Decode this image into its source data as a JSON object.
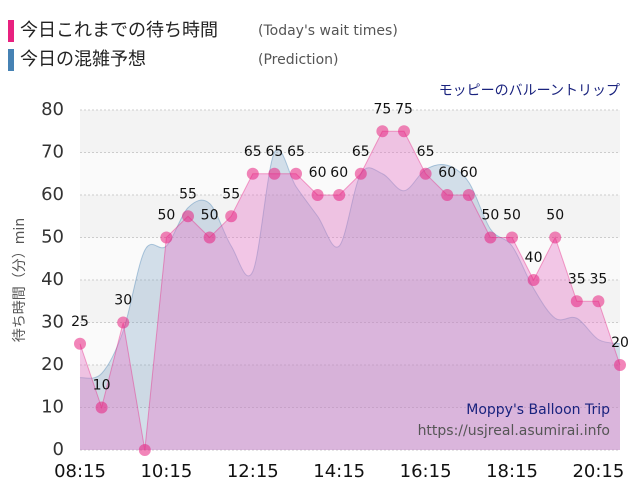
{
  "chart_data": {
    "type": "area",
    "legend": [
      {
        "name": "今日これまでの待ち時間",
        "note": "(Today's wait times)",
        "color": "#e8217f"
      },
      {
        "name": "今日の混雑予想",
        "note": "(Prediction)",
        "color": "#4682b4"
      }
    ],
    "subtitle": "モッピーのバルーントリップ",
    "ylabel": "待ち時間（分）min",
    "watermark": [
      "Moppy's Balloon Trip",
      "https://usjreal.asumirai.info"
    ],
    "categories": [
      "08:15",
      null,
      null,
      null,
      "10:15",
      null,
      null,
      null,
      "12:15",
      null,
      null,
      null,
      "14:15",
      null,
      null,
      null,
      "16:15",
      null,
      null,
      null,
      "18:15",
      null,
      null,
      null,
      "20:15",
      null
    ],
    "series": [
      {
        "name": "今日の混雑予想",
        "color": "#4682b4",
        "fill": "rgba(120,160,195,0.3)",
        "smooth": true,
        "values": [
          17,
          18,
          28,
          47,
          48,
          57,
          58,
          48,
          42,
          70,
          62,
          55,
          48,
          65,
          65,
          61,
          66,
          67,
          63,
          52,
          48,
          38,
          31,
          31,
          26,
          25
        ]
      },
      {
        "name": "今日これまでの待ち時間",
        "color": "#e8217f",
        "fill": "rgba(230,120,200,0.4)",
        "smooth": false,
        "points": true,
        "values": [
          25,
          10,
          30,
          0,
          50,
          55,
          50,
          55,
          65,
          65,
          65,
          60,
          60,
          65,
          75,
          75,
          65,
          60,
          60,
          50,
          50,
          40,
          50,
          35,
          35,
          20
        ],
        "value_labels": [
          "25",
          "10",
          "30",
          null,
          "50",
          "55",
          "50",
          "55",
          "65",
          "65",
          "65",
          "60",
          "60",
          "65",
          "75",
          "75",
          "65",
          "60",
          "60",
          "50",
          "50",
          "40",
          "50",
          "35",
          "35",
          "20"
        ]
      }
    ],
    "ylim": [
      0,
      80
    ],
    "yticks": [
      0,
      10,
      20,
      30,
      40,
      50,
      60,
      70,
      80
    ],
    "grid": true
  }
}
